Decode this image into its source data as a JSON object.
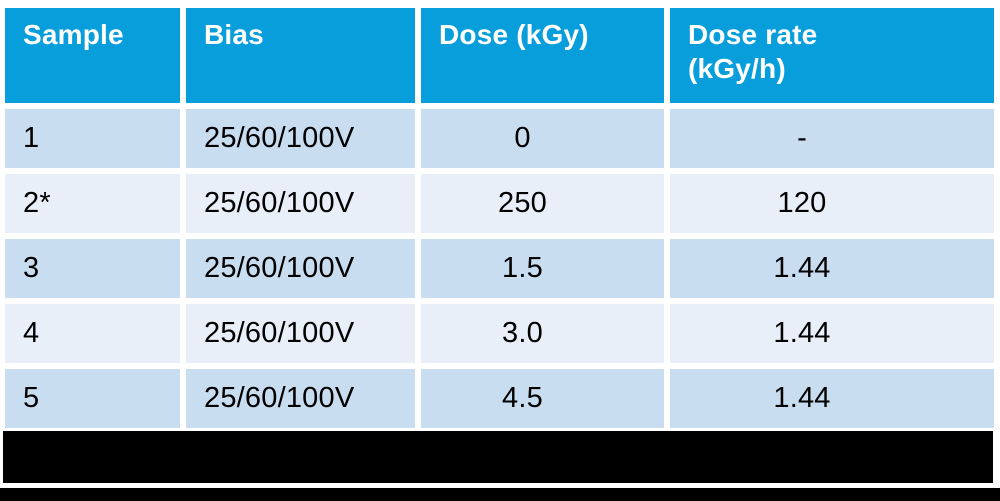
{
  "chart_data": {
    "type": "table",
    "title": "",
    "columns": [
      "Sample",
      "Bias",
      "Dose (kGy)",
      "Dose rate (kGy/h)"
    ],
    "rows": [
      [
        "1",
        "25/60/100V",
        "0",
        "-"
      ],
      [
        "2*",
        "25/60/100V",
        "250",
        "120"
      ],
      [
        "3",
        "25/60/100V",
        "1.5",
        "1.44"
      ],
      [
        "4",
        "25/60/100V",
        "3.0",
        "1.44"
      ],
      [
        "5",
        "25/60/100V",
        "4.5",
        "1.44"
      ]
    ],
    "footnote_marker": "*",
    "layout": {
      "header_position": "top",
      "value_alignment": [
        "left",
        "left",
        "center",
        "center"
      ],
      "gridlines": "white separators between cells"
    }
  },
  "colors": {
    "header_bg": "#089EDC",
    "header_text": "#FFFFFF",
    "row_odd_bg": "#C9DDF1",
    "row_even_bg": "#E9EFF9",
    "body_text": "#000000",
    "redaction": "#000000",
    "background": "#FFFFFF"
  },
  "redactions": {
    "caption_bar": "black rectangle covering caption area below table",
    "bottom_bar": "black strip across bottom edge"
  }
}
